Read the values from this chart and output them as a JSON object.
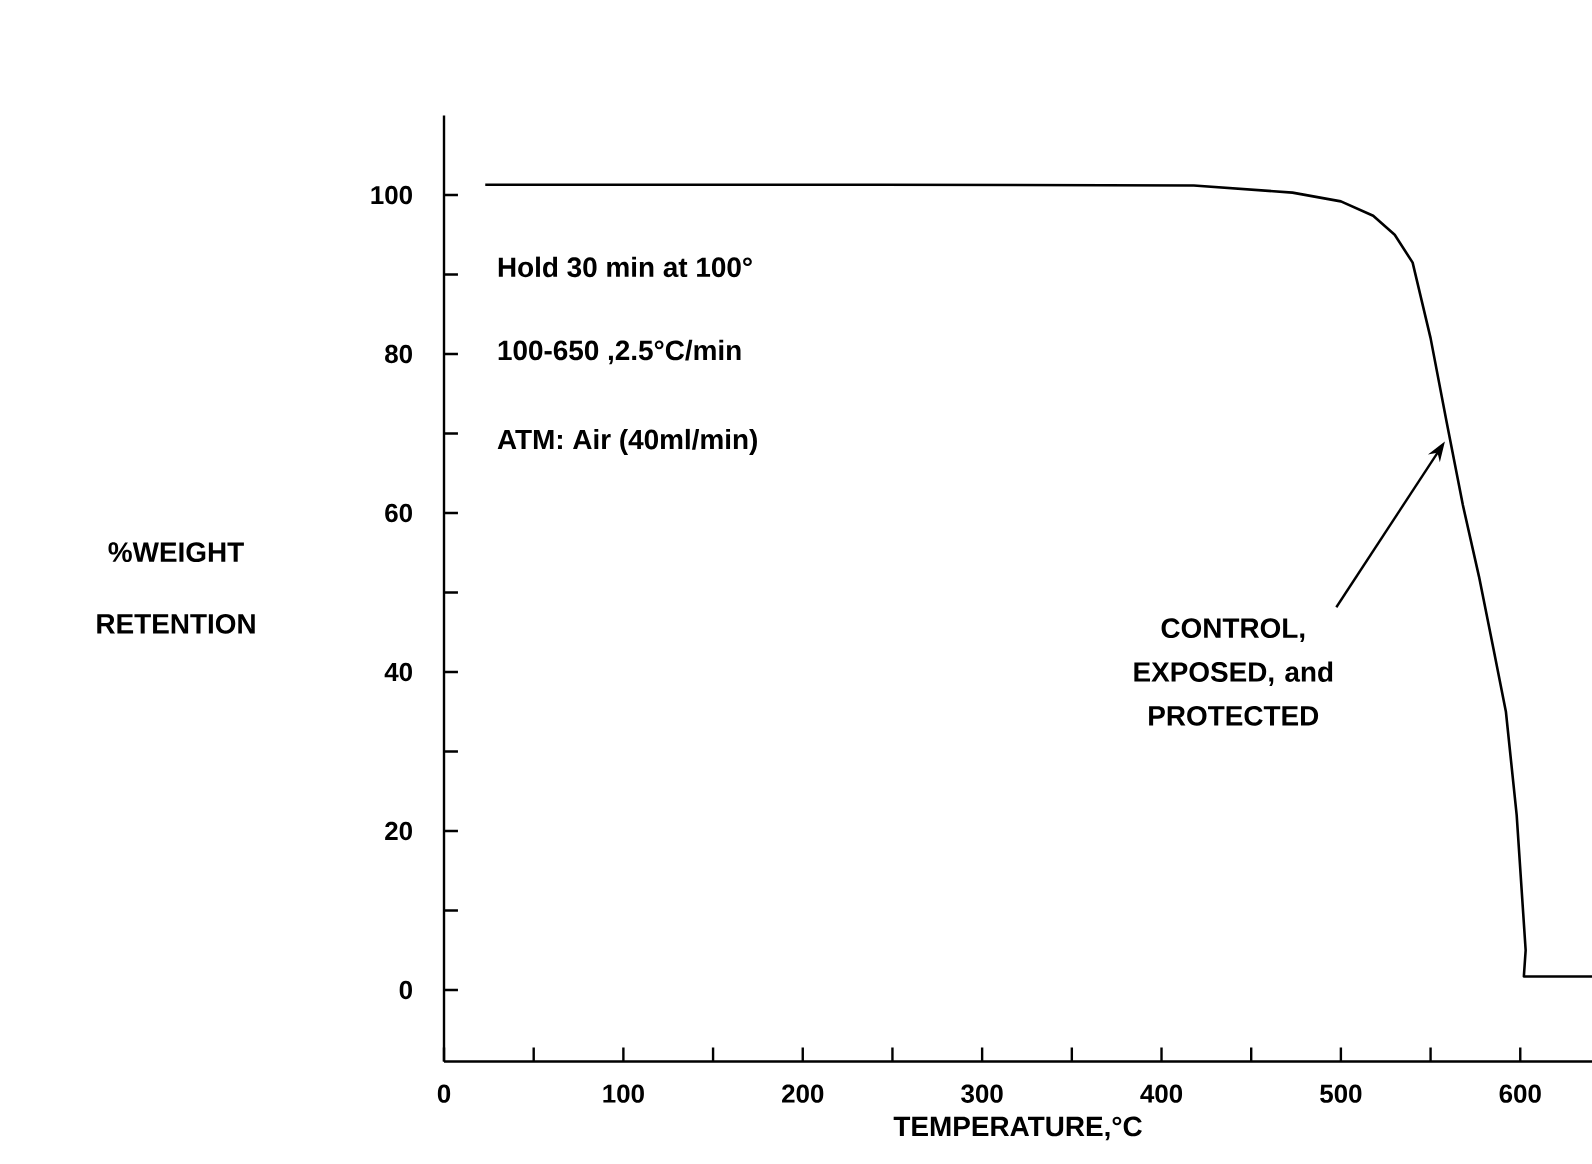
{
  "chart_data": {
    "type": "line",
    "xlabel": "TEMPERATURE,°C",
    "ylabel": "%WEIGHT RETENTION",
    "x": [
      23,
      243,
      418,
      473,
      500,
      518,
      530,
      540,
      550,
      559,
      568,
      577,
      585,
      592,
      598,
      603,
      602,
      640
    ],
    "series": [
      {
        "color": "#000000",
        "values": [
          101.3,
          101.3,
          101.2,
          100.3,
          99.2,
          97.4,
          95,
          91.5,
          82,
          71.4,
          61,
          52,
          43,
          35,
          22,
          5,
          1.7,
          1.7
        ]
      }
    ],
    "xlim": [
      0,
      640
    ],
    "ylim": [
      -9,
      110
    ],
    "xticks": [
      0,
      {
        "value": 50,
        "label": null
      },
      100,
      {
        "value": 150,
        "label": null
      },
      200,
      {
        "value": 250,
        "label": null
      },
      300,
      {
        "value": 350,
        "label": null
      },
      400,
      {
        "value": 450,
        "label": null
      },
      500,
      {
        "value": 550,
        "label": null
      },
      600
    ],
    "yticks": [
      0,
      {
        "value": 10,
        "label": null
      },
      20,
      {
        "value": 30,
        "label": null
      },
      40,
      {
        "value": 50,
        "label": null
      },
      60,
      {
        "value": 70,
        "label": null
      },
      80,
      {
        "value": 90,
        "label": null
      },
      100
    ],
    "grid": false,
    "marker": "none",
    "line_style": "solid",
    "annotations": [
      "Hold 30 min at 100°",
      "100-650 ,2.5°C/min",
      "ATM: Air (40ml/min)",
      {
        "text": "CONTROL, EXPOSED, and PROTECTED",
        "x": 559,
        "y": 68
      }
    ]
  }
}
